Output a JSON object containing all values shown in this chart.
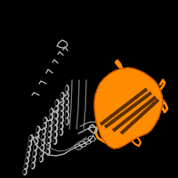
{
  "background_color": "#000000",
  "figure_size": [
    2.0,
    2.0
  ],
  "dpi": 100,
  "gray_color": "#B0B0B0",
  "orange_color": "#FF8C00",
  "dark_line": "#000000"
}
